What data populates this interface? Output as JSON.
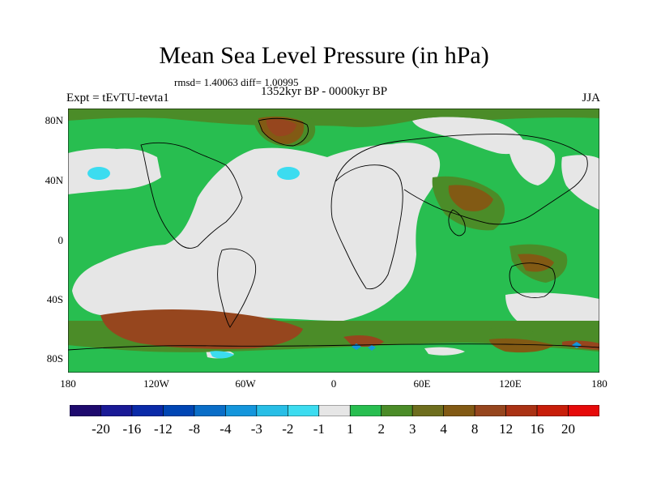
{
  "title": "Mean Sea Level Pressure (in hPa)",
  "stats": "rmsd= 1.40063 diff= 1.00995",
  "subtitle": "1352kyr BP - 0000kyr BP",
  "left_label": "Expt = tEvTU-tevta1",
  "right_label": "JJA",
  "lat_labels": [
    "80N",
    "40N",
    "0",
    "40S",
    "80S"
  ],
  "lon_labels": [
    "180",
    "120W",
    "60W",
    "0",
    "60E",
    "120E",
    "180"
  ],
  "colorbar": {
    "labels": [
      "-20",
      "-16",
      "-12",
      "-8",
      "-4",
      "-3",
      "-2",
      "-1",
      "1",
      "2",
      "3",
      "4",
      "8",
      "12",
      "16",
      "20"
    ],
    "colors": [
      "#1e0a6e",
      "#1a1a96",
      "#0a2aa8",
      "#0046b4",
      "#0a6ec8",
      "#1496dc",
      "#28bee6",
      "#3cdcf0",
      "#e6e6e6",
      "#28be50",
      "#4b8c28",
      "#6e6e1e",
      "#825a14",
      "#96461e",
      "#aa3214",
      "#c81e0a",
      "#e60a0a"
    ]
  },
  "legend_colors": {
    "ocean_low": "#e6e6e6",
    "band_1": "#28be50",
    "band_2": "#4b8c28",
    "band_3": "#6e6e1e",
    "band_4": "#825a14",
    "band_5": "#96461e",
    "neg_1": "#3cdcf0",
    "neg_2": "#1496dc"
  }
}
